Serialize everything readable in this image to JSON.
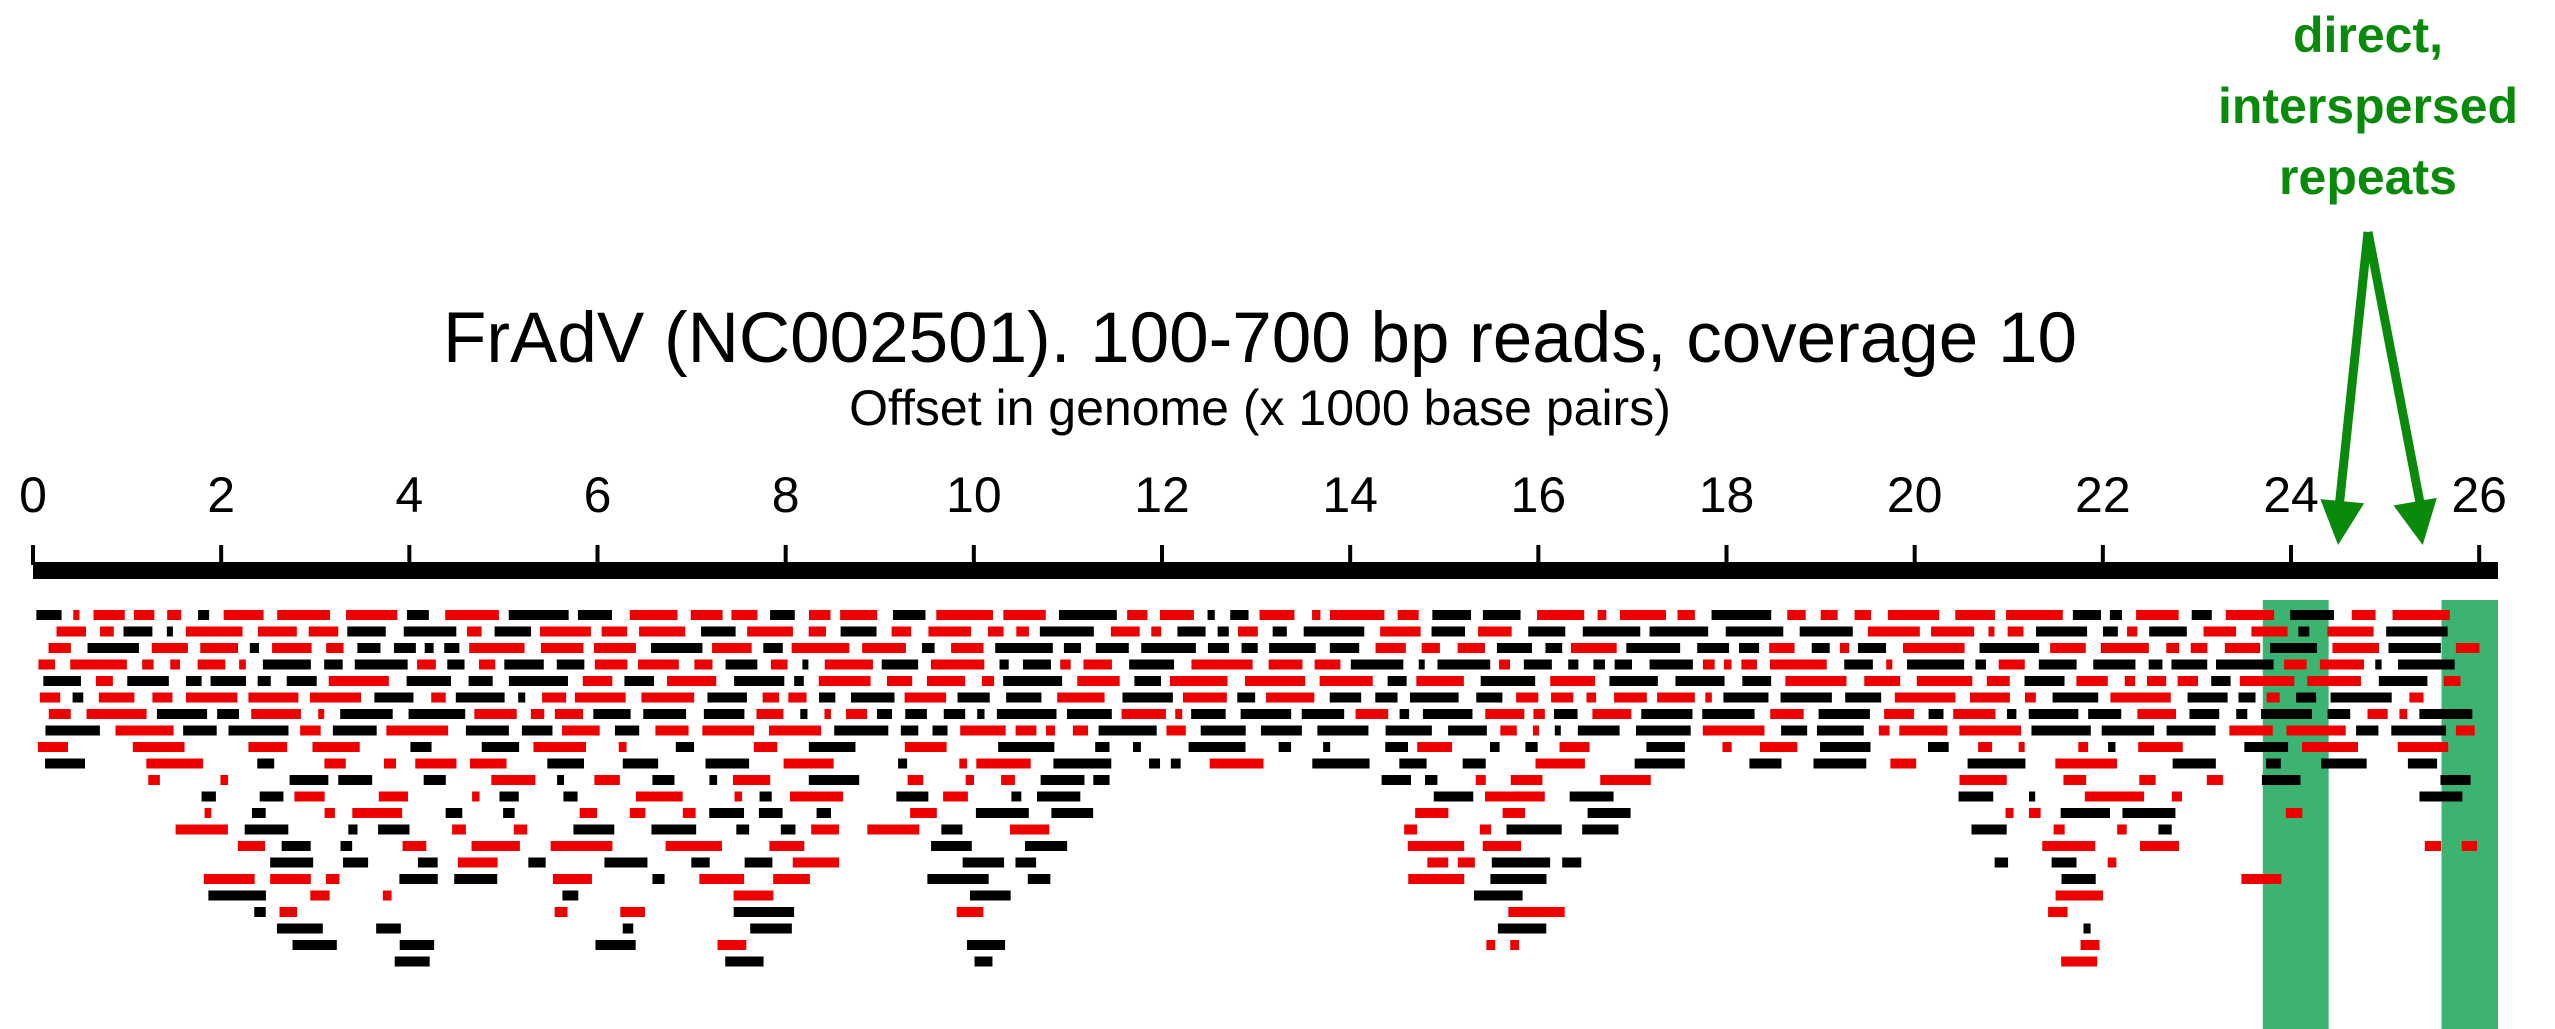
{
  "title": "FrAdV (NC002501). 100-700 bp reads, coverage 10",
  "axis_label": "Offset in genome (x 1000 base pairs)",
  "annotation": {
    "lines": [
      "direct,",
      "interspersed",
      "repeats"
    ]
  },
  "colors": {
    "read_forward": "#000000",
    "read_reverse": "#ee0000",
    "repeat_highlight": "#3cb371",
    "annotation": "#0a8a0a",
    "genome_bar": "#000000"
  },
  "legend": [],
  "chart_data": {
    "type": "read-coverage-map",
    "title": "FrAdV (NC002501). 100-700 bp reads, coverage 10",
    "xlabel": "Offset in genome (x 1000 base pairs)",
    "xlim": [
      0,
      26.2
    ],
    "ticks": [
      0,
      2,
      4,
      6,
      8,
      10,
      12,
      14,
      16,
      18,
      20,
      22,
      24,
      26
    ],
    "tick_labels": [
      "0",
      "2",
      "4",
      "6",
      "8",
      "10",
      "12",
      "14",
      "16",
      "18",
      "20",
      "22",
      "24",
      "26"
    ],
    "genome_length_kbp": 26.2,
    "read_length_bp": [
      100,
      700
    ],
    "coverage": 10,
    "highlighted_regions_kbp": [
      [
        23.7,
        24.4
      ],
      [
        25.6,
        26.2
      ]
    ],
    "deep_stack_peaks_kbp": [
      2.8,
      4.1,
      6.0,
      7.6,
      10.2,
      15.6,
      21.8
    ],
    "arrow_targets_kbp": [
      24.5,
      25.4
    ]
  }
}
